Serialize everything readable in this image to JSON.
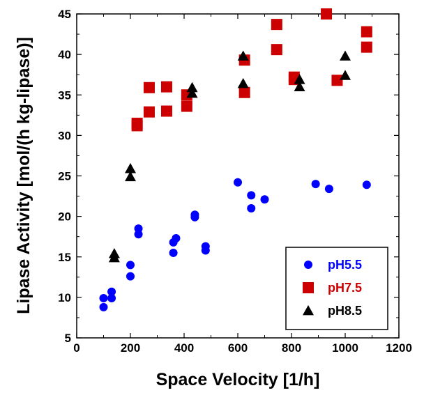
{
  "chart_data": {
    "type": "scatter",
    "title": "",
    "xlabel": "Space Velocity [1/h]",
    "ylabel": "Lipase Activity [mol/(h kg-lipase)]",
    "xlim": [
      0,
      1200
    ],
    "ylim": [
      5,
      45
    ],
    "xticks": [
      0,
      200,
      400,
      600,
      800,
      1000,
      1200
    ],
    "yticks": [
      5,
      10,
      15,
      20,
      25,
      30,
      35,
      40,
      45
    ],
    "grid": false,
    "legend_position": "bottom-right",
    "series": [
      {
        "name": "pH5.5",
        "marker": "circle",
        "color": "#0000ff",
        "points": [
          [
            100,
            9.9
          ],
          [
            100,
            8.8
          ],
          [
            130,
            10.7
          ],
          [
            130,
            9.9
          ],
          [
            200,
            14.0
          ],
          [
            200,
            12.6
          ],
          [
            230,
            18.5
          ],
          [
            230,
            17.8
          ],
          [
            360,
            16.8
          ],
          [
            360,
            15.5
          ],
          [
            370,
            17.3
          ],
          [
            440,
            20.2
          ],
          [
            440,
            19.9
          ],
          [
            480,
            16.3
          ],
          [
            480,
            15.8
          ],
          [
            600,
            24.2
          ],
          [
            650,
            22.6
          ],
          [
            650,
            21.0
          ],
          [
            700,
            22.1
          ],
          [
            890,
            24.0
          ],
          [
            940,
            23.4
          ],
          [
            1080,
            23.9
          ]
        ]
      },
      {
        "name": "pH7.5",
        "marker": "square",
        "color": "#cc0000",
        "points": [
          [
            225,
            31.5
          ],
          [
            225,
            31.2
          ],
          [
            270,
            35.9
          ],
          [
            270,
            32.9
          ],
          [
            335,
            36.0
          ],
          [
            335,
            33.0
          ],
          [
            410,
            35.0
          ],
          [
            410,
            33.6
          ],
          [
            625,
            39.3
          ],
          [
            625,
            35.3
          ],
          [
            745,
            43.7
          ],
          [
            745,
            40.6
          ],
          [
            810,
            37.2
          ],
          [
            810,
            36.9
          ],
          [
            930,
            45.0
          ],
          [
            970,
            36.8
          ],
          [
            1080,
            42.8
          ],
          [
            1080,
            40.9
          ]
        ]
      },
      {
        "name": "pH8.5",
        "marker": "triangle",
        "color": "#000000",
        "points": [
          [
            140,
            15.4
          ],
          [
            140,
            14.9
          ],
          [
            200,
            25.9
          ],
          [
            200,
            24.9
          ],
          [
            430,
            35.9
          ],
          [
            430,
            35.2
          ],
          [
            620,
            39.8
          ],
          [
            620,
            36.4
          ],
          [
            830,
            36.9
          ],
          [
            830,
            36.0
          ],
          [
            1000,
            39.8
          ],
          [
            1000,
            37.4
          ]
        ]
      }
    ]
  }
}
